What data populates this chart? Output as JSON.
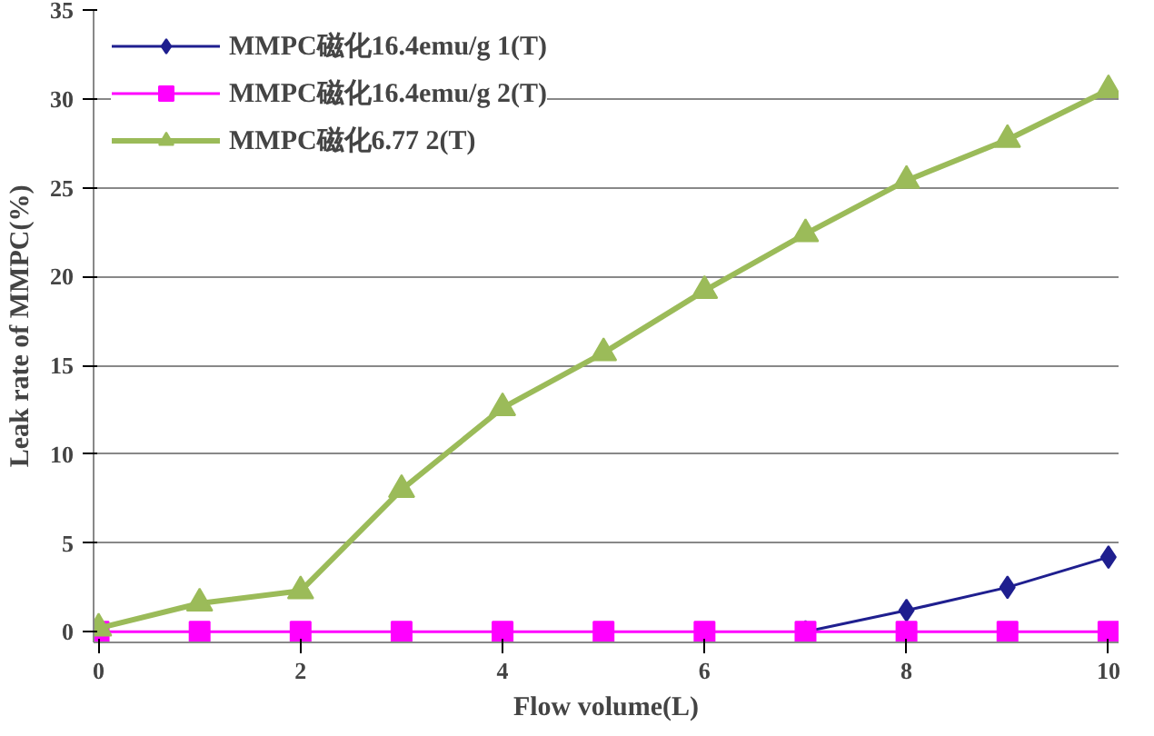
{
  "chart_data": {
    "type": "line",
    "xlabel": "Flow volume(L)",
    "ylabel": "Leak rate of MMPC(%)",
    "x": [
      0,
      1,
      2,
      3,
      4,
      5,
      6,
      7,
      8,
      9,
      10
    ],
    "series": [
      {
        "name": "MMPC磁化16.4emu/g 1(T)",
        "color": "#1f1f8f",
        "marker": "diamond",
        "values": [
          null,
          null,
          null,
          null,
          null,
          null,
          null,
          0,
          1.2,
          2.5,
          4.2
        ]
      },
      {
        "name": "MMPC磁化16.4emu/g 2(T)",
        "color": "#ff00ff",
        "marker": "square",
        "values": [
          0,
          0,
          0,
          0,
          0,
          0,
          0,
          0,
          0,
          0,
          0
        ]
      },
      {
        "name": "MMPC磁化6.77 2(T)",
        "color": "#9bbb59",
        "marker": "triangle",
        "values": [
          0.2,
          1.6,
          2.3,
          8,
          12.6,
          15.7,
          19.2,
          22.4,
          25.4,
          27.7,
          30.5
        ]
      }
    ],
    "xlim": [
      -0.05,
      10.1
    ],
    "ylim": [
      -0.6,
      35
    ],
    "xticks": [
      0,
      2,
      4,
      6,
      8,
      10
    ],
    "yticks": [
      0,
      5,
      10,
      15,
      20,
      25,
      30,
      35
    ],
    "grid": "y",
    "legend": "top left",
    "line_style": "solid"
  }
}
